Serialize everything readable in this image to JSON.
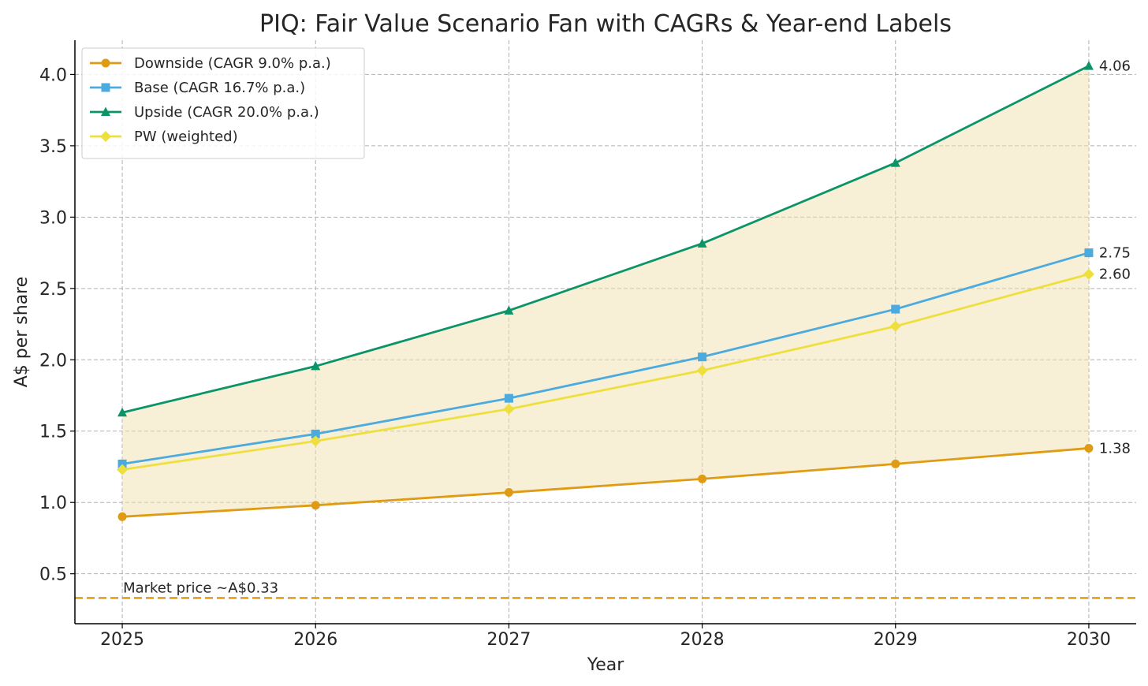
{
  "chart_data": {
    "type": "line",
    "title": "PIQ: Fair Value Scenario Fan with CAGRs & Year-end Labels",
    "xlabel": "Year",
    "ylabel": "A$ per share",
    "x": [
      2025,
      2026,
      2027,
      2028,
      2029,
      2030
    ],
    "x_tick_labels": [
      "2025",
      "2026",
      "2027",
      "2028",
      "2029",
      "2030"
    ],
    "ylim": [
      0.15,
      4.24
    ],
    "y_ticks": [
      0.5,
      1.0,
      1.5,
      2.0,
      2.5,
      3.0,
      3.5,
      4.0
    ],
    "y_tick_labels": [
      "0.5",
      "1.0",
      "1.5",
      "2.0",
      "2.5",
      "3.0",
      "3.5",
      "4.0"
    ],
    "grid": true,
    "legend_position": "top-left",
    "series": [
      {
        "name": "Downside (CAGR 9.0% p.a.)",
        "marker": "circle",
        "color": "#E09B14",
        "values": [
          0.9,
          0.98,
          1.07,
          1.165,
          1.27,
          1.38
        ],
        "end_label": "1.38"
      },
      {
        "name": "Base (CAGR 16.7% p.a.)",
        "marker": "square",
        "color": "#4BAADE",
        "values": [
          1.27,
          1.48,
          1.73,
          2.02,
          2.355,
          2.75
        ],
        "end_label": "2.75"
      },
      {
        "name": "Upside (CAGR 20.0% p.a.)",
        "marker": "triangle",
        "color": "#0A9468",
        "values": [
          1.63,
          1.955,
          2.345,
          2.815,
          3.38,
          4.06
        ],
        "end_label": "4.06"
      },
      {
        "name": "PW (weighted)",
        "marker": "diamond",
        "color": "#EDE03E",
        "values": [
          1.23,
          1.43,
          1.655,
          1.925,
          2.235,
          2.6
        ],
        "end_label": "2.60"
      }
    ],
    "fan_fill": {
      "color": "#F2E0B0",
      "opacity": 0.5,
      "between": [
        "Downside (CAGR 9.0% p.a.)",
        "Upside (CAGR 20.0% p.a.)"
      ]
    },
    "reference_line": {
      "value": 0.33,
      "label": "Market price ~A$0.33",
      "color": "#E09B14",
      "style": "dashed"
    }
  }
}
